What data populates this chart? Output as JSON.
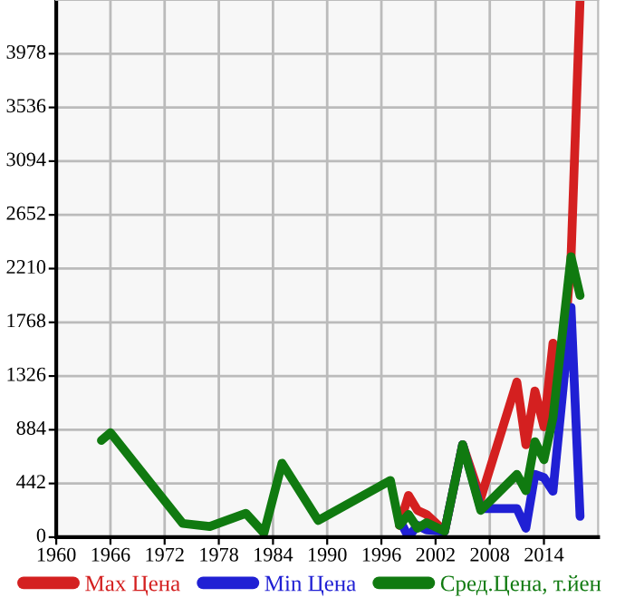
{
  "chart_data": {
    "type": "line",
    "xlim": [
      1960,
      2020
    ],
    "ylim": [
      0,
      4420
    ],
    "xticks": [
      1960,
      1966,
      1972,
      1978,
      1984,
      1990,
      1996,
      2002,
      2008,
      2014
    ],
    "yticks": [
      0,
      442,
      884,
      1326,
      1768,
      2210,
      2652,
      3094,
      3536,
      3978
    ],
    "grid": true,
    "legend": "bottom",
    "line_style": "solid",
    "marker": "none",
    "series": [
      {
        "name": "Max Цена",
        "color": "#d42020",
        "x": [
          1998,
          1999,
          2000,
          2001,
          2003,
          2005,
          2007,
          2011,
          2012,
          2013,
          2014,
          2015,
          2016,
          2017,
          2018
        ],
        "values": [
          98,
          344,
          221,
          187,
          49,
          761,
          319,
          1277,
          761,
          1203,
          909,
          1596,
          1350,
          2300,
          4420
        ]
      },
      {
        "name": "Min Цена",
        "color": "#2020d4",
        "x": [
          1998,
          1999,
          2000,
          2001,
          2003,
          2005,
          2007,
          2011,
          2012,
          2013,
          2014,
          2015,
          2017,
          2018
        ],
        "values": [
          147,
          0,
          98,
          60,
          49,
          761,
          236,
          236,
          74,
          516,
          491,
          378,
          1891,
          172
        ]
      },
      {
        "name": "Сред.Цена, т.йен",
        "color": "#107a10",
        "x": [
          1965,
          1966,
          1974,
          1977,
          1981,
          1983,
          1985,
          1989,
          1997,
          1998,
          1999,
          2000,
          2001,
          2003,
          2005,
          2007,
          2011,
          2012,
          2013,
          2014,
          2015,
          2017,
          2018
        ],
        "values": [
          796,
          860,
          113,
          88,
          196,
          34,
          609,
          138,
          467,
          98,
          187,
          74,
          120,
          49,
          761,
          221,
          516,
          383,
          786,
          638,
          982,
          2308,
          1989
        ]
      }
    ]
  }
}
